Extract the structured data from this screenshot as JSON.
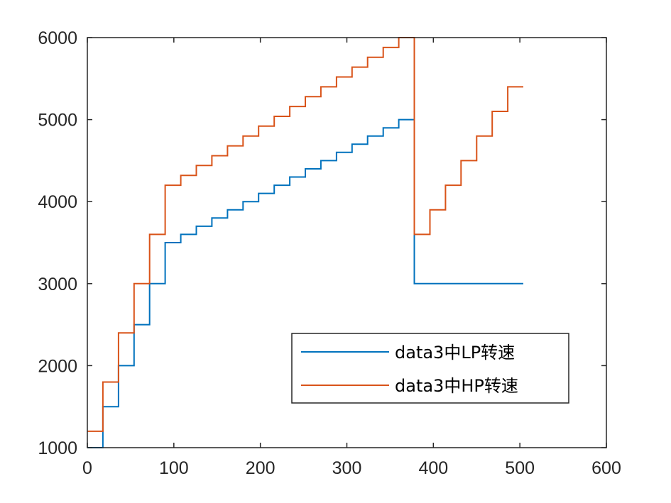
{
  "chart_data": {
    "type": "line",
    "title": "",
    "xlabel": "",
    "ylabel": "",
    "xlim": [
      0,
      600
    ],
    "ylim": [
      1000,
      6000
    ],
    "xticks": [
      0,
      100,
      200,
      300,
      400,
      500,
      600
    ],
    "yticks": [
      1000,
      2000,
      3000,
      4000,
      5000,
      6000
    ],
    "grid": false,
    "legend_position": "inside-lower-right",
    "series": [
      {
        "name": "data3中LP转速",
        "color": "#0072BD",
        "x": [
          0,
          18,
          18,
          36,
          36,
          54,
          54,
          72,
          72,
          90,
          90,
          108,
          108,
          126,
          126,
          144,
          144,
          162,
          162,
          180,
          180,
          198,
          198,
          216,
          216,
          234,
          234,
          252,
          252,
          270,
          270,
          288,
          288,
          306,
          306,
          324,
          324,
          342,
          342,
          360,
          360,
          378,
          378,
          504
        ],
        "y": [
          1000,
          1000,
          1500,
          1500,
          2000,
          2000,
          2500,
          2500,
          3000,
          3000,
          3500,
          3500,
          3600,
          3600,
          3700,
          3700,
          3800,
          3800,
          3900,
          3900,
          4000,
          4000,
          4100,
          4100,
          4200,
          4200,
          4300,
          4300,
          4400,
          4400,
          4500,
          4500,
          4600,
          4600,
          4700,
          4700,
          4800,
          4800,
          4900,
          4900,
          5000,
          5000,
          3000,
          3000
        ]
      },
      {
        "name": "data3中HP转速",
        "color": "#D95319",
        "x": [
          0,
          18,
          18,
          36,
          36,
          54,
          54,
          72,
          72,
          90,
          90,
          108,
          108,
          126,
          126,
          144,
          144,
          162,
          162,
          180,
          180,
          198,
          198,
          216,
          216,
          234,
          234,
          252,
          252,
          270,
          270,
          288,
          288,
          306,
          306,
          324,
          324,
          342,
          342,
          360,
          360,
          378,
          378,
          396,
          396,
          414,
          414,
          432,
          432,
          450,
          450,
          468,
          468,
          486,
          486,
          504
        ],
        "y": [
          1200,
          1200,
          1800,
          1800,
          2400,
          2400,
          3000,
          3000,
          3600,
          3600,
          4200,
          4200,
          4320,
          4320,
          4440,
          4440,
          4560,
          4560,
          4680,
          4680,
          4800,
          4800,
          4920,
          4920,
          5040,
          5040,
          5160,
          5160,
          5280,
          5280,
          5400,
          5400,
          5520,
          5520,
          5640,
          5640,
          5760,
          5760,
          5880,
          5880,
          6000,
          6000,
          3600,
          3600,
          3900,
          3900,
          4200,
          4200,
          4500,
          4500,
          4800,
          4800,
          5100,
          5100,
          5400,
          5400
        ]
      }
    ]
  }
}
